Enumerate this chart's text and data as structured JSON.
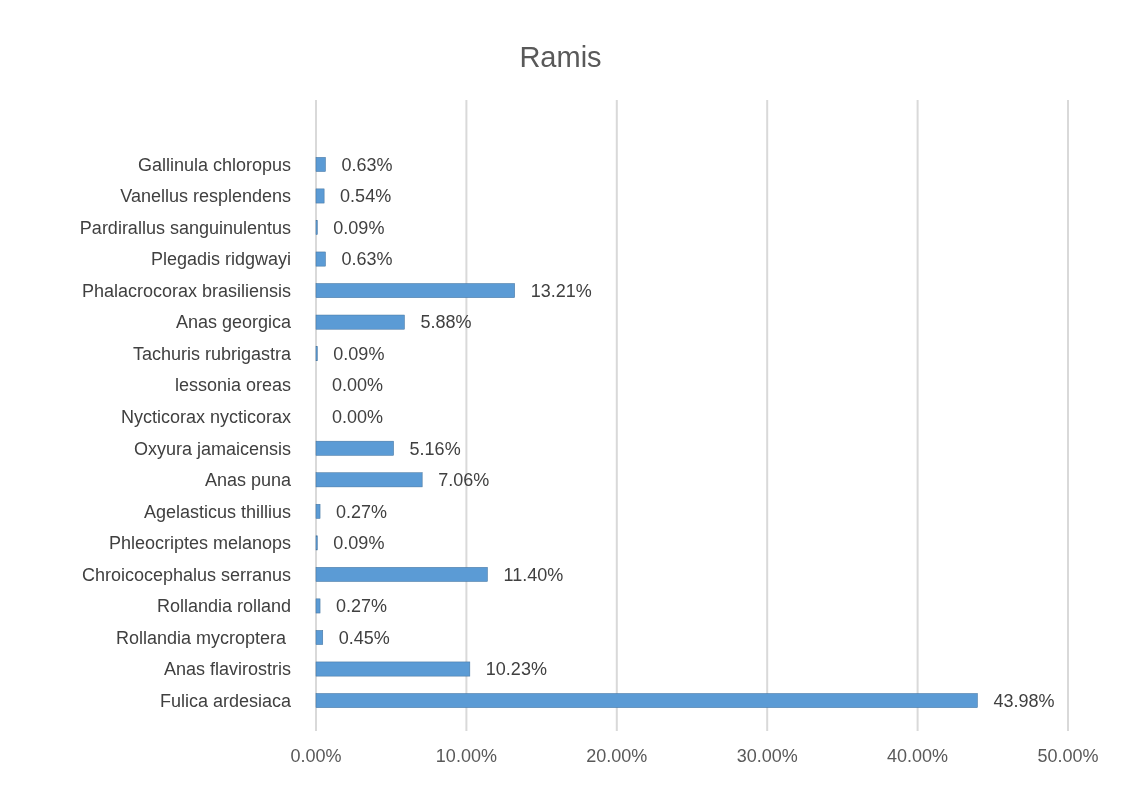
{
  "chart_data": {
    "type": "bar",
    "orientation": "horizontal",
    "title": "Ramis",
    "categories": [
      "Gallinula chloropus",
      "Vanellus resplendens",
      "Pardirallus sanguinulentus",
      "Plegadis ridgwayi",
      "Phalacrocorax brasiliensis",
      "Anas georgica",
      "Tachuris rubrigastra",
      "lessonia oreas",
      "Nycticorax nycticorax",
      "Oxyura jamaicensis",
      "Anas puna",
      "Agelasticus thillius",
      "Phleocriptes melanops",
      "Chroicocephalus serranus",
      "Rollandia rolland",
      "Rollandia mycroptera ",
      "Anas flavirostris",
      "Fulica ardesiaca"
    ],
    "values": [
      0.63,
      0.54,
      0.09,
      0.63,
      13.21,
      5.88,
      0.09,
      0,
      0,
      5.16,
      7.06,
      0.27,
      0.09,
      11.4,
      0.27,
      0.45,
      10.23,
      43.98
    ],
    "value_labels": [
      "0.63%",
      "0.54%",
      "0.09%",
      "0.63%",
      "13.21%",
      "5.88%",
      "0.09%",
      "0.00%",
      "0.00%",
      "5.16%",
      "7.06%",
      "0.27%",
      "0.09%",
      "11.40%",
      "0.27%",
      "0.45%",
      "10.23%",
      "43.98%"
    ],
    "color": "#5b9bd5",
    "xlim": [
      0,
      50
    ],
    "xticks": [
      {
        "value": 0,
        "label": "0.00%"
      },
      {
        "value": 10,
        "label": "10.00%"
      },
      {
        "value": 20,
        "label": "20.00%"
      },
      {
        "value": 30,
        "label": "30.00%"
      },
      {
        "value": 40,
        "label": "40.00%"
      },
      {
        "value": 50,
        "label": "50.00%"
      }
    ],
    "grid": "x"
  }
}
